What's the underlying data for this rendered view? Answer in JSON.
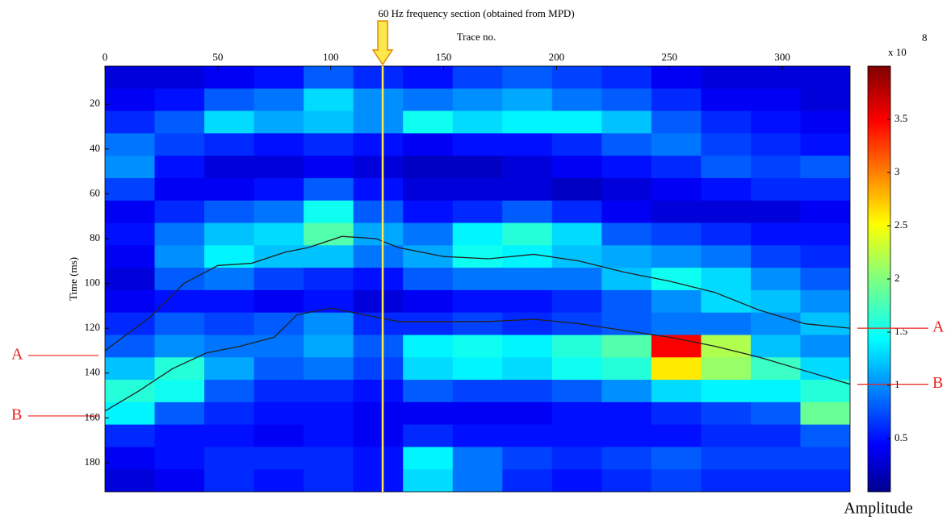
{
  "chart_data": {
    "type": "heatmap",
    "title": "60 Hz frequency section (obtained from MPD)",
    "x_label": "Trace no.",
    "y_label": "Time (ms)",
    "x": [
      11,
      33,
      55,
      77,
      99,
      121,
      143,
      165,
      187,
      209,
      231,
      253,
      275,
      297,
      319
    ],
    "y": [
      8,
      18,
      28,
      38,
      48,
      58,
      68,
      78,
      88,
      98,
      108,
      118,
      128,
      138,
      148,
      158,
      168,
      178,
      188
    ],
    "z": [
      [
        0.3,
        0.3,
        0.4,
        0.5,
        0.8,
        0.6,
        0.5,
        0.7,
        0.8,
        0.7,
        0.6,
        0.4,
        0.3,
        0.3,
        0.3
      ],
      [
        0.4,
        0.5,
        0.8,
        0.9,
        1.3,
        1.0,
        0.9,
        1.0,
        1.1,
        0.9,
        0.8,
        0.6,
        0.4,
        0.4,
        0.3
      ],
      [
        0.6,
        0.8,
        1.3,
        1.1,
        1.2,
        1.0,
        1.5,
        1.3,
        1.4,
        1.4,
        1.2,
        0.8,
        0.6,
        0.5,
        0.4
      ],
      [
        0.9,
        0.7,
        0.6,
        0.5,
        0.6,
        0.5,
        0.4,
        0.5,
        0.5,
        0.6,
        0.8,
        0.9,
        0.7,
        0.6,
        0.5
      ],
      [
        1.0,
        0.5,
        0.3,
        0.3,
        0.4,
        0.3,
        0.2,
        0.2,
        0.3,
        0.4,
        0.5,
        0.6,
        0.8,
        0.7,
        0.8
      ],
      [
        0.7,
        0.4,
        0.4,
        0.5,
        0.8,
        0.5,
        0.3,
        0.3,
        0.3,
        0.2,
        0.3,
        0.4,
        0.5,
        0.6,
        0.6
      ],
      [
        0.4,
        0.6,
        0.8,
        0.9,
        1.5,
        0.8,
        0.5,
        0.6,
        0.8,
        0.6,
        0.4,
        0.3,
        0.3,
        0.3,
        0.4
      ],
      [
        0.5,
        0.9,
        1.2,
        1.3,
        1.8,
        1.1,
        0.9,
        1.4,
        1.6,
        1.3,
        0.8,
        0.7,
        0.6,
        0.5,
        0.5
      ],
      [
        0.4,
        1.0,
        1.4,
        1.2,
        1.2,
        0.9,
        1.1,
        1.5,
        1.4,
        1.2,
        1.1,
        1.0,
        0.9,
        0.7,
        0.6
      ],
      [
        0.3,
        0.8,
        0.9,
        0.7,
        0.6,
        0.5,
        0.8,
        0.9,
        0.9,
        0.9,
        1.2,
        1.5,
        1.3,
        1.0,
        0.8
      ],
      [
        0.4,
        0.5,
        0.5,
        0.4,
        0.5,
        0.3,
        0.4,
        0.5,
        0.5,
        0.6,
        0.8,
        1.0,
        1.3,
        1.2,
        1.0
      ],
      [
        0.6,
        0.8,
        0.7,
        0.8,
        1.0,
        0.6,
        0.6,
        0.7,
        0.6,
        0.7,
        0.8,
        0.9,
        0.9,
        1.0,
        1.2
      ],
      [
        0.8,
        1.0,
        0.9,
        0.9,
        1.1,
        0.8,
        1.4,
        1.5,
        1.4,
        1.6,
        1.8,
        3.5,
        2.2,
        1.2,
        1.0
      ],
      [
        1.2,
        1.6,
        1.1,
        0.8,
        0.9,
        0.7,
        1.3,
        1.4,
        1.3,
        1.5,
        1.6,
        2.6,
        2.1,
        1.7,
        1.3
      ],
      [
        1.6,
        1.5,
        0.8,
        0.6,
        0.6,
        0.5,
        0.8,
        0.7,
        0.7,
        0.8,
        1.0,
        1.3,
        1.4,
        1.4,
        1.6
      ],
      [
        1.4,
        0.8,
        0.6,
        0.5,
        0.5,
        0.4,
        0.4,
        0.4,
        0.4,
        0.5,
        0.5,
        0.6,
        0.7,
        0.8,
        1.9
      ],
      [
        0.6,
        0.5,
        0.5,
        0.4,
        0.5,
        0.4,
        0.6,
        0.5,
        0.5,
        0.5,
        0.5,
        0.5,
        0.6,
        0.6,
        0.8
      ],
      [
        0.4,
        0.5,
        0.6,
        0.6,
        0.6,
        0.5,
        1.4,
        0.9,
        0.7,
        0.6,
        0.7,
        0.8,
        0.7,
        0.7,
        0.7
      ],
      [
        0.3,
        0.4,
        0.6,
        0.5,
        0.6,
        0.5,
        1.3,
        0.9,
        0.6,
        0.5,
        0.6,
        0.7,
        0.6,
        0.6,
        0.6
      ]
    ],
    "xlim": [
      0,
      330
    ],
    "ylim": [
      3,
      193
    ],
    "xticks": [
      0,
      50,
      100,
      150,
      200,
      250,
      300
    ],
    "yticks": [
      20,
      40,
      60,
      80,
      100,
      120,
      140,
      160,
      180
    ],
    "y_reversed": true,
    "colormap": "jet",
    "colorbar": {
      "label": "Amplitude",
      "multiplier": "x 10",
      "exponent": "8",
      "clim": [
        0,
        4
      ],
      "ticks": [
        0.5,
        1,
        1.5,
        2,
        2.5,
        3,
        3.5
      ]
    },
    "vline": {
      "x": 123,
      "color": "#ffe84d"
    },
    "series": [
      {
        "name": "A",
        "color": "#222222",
        "x": [
          0,
          20,
          35,
          50,
          65,
          80,
          90,
          105,
          120,
          130,
          150,
          170,
          190,
          210,
          230,
          250,
          270,
          290,
          310,
          330
        ],
        "values": [
          130,
          115,
          100,
          92,
          91,
          86,
          84,
          79,
          80,
          84,
          88,
          89,
          87,
          90,
          95,
          99,
          104,
          112,
          118,
          120
        ]
      },
      {
        "name": "B",
        "color": "#222222",
        "x": [
          0,
          15,
          30,
          45,
          60,
          75,
          85,
          100,
          115,
          130,
          150,
          170,
          190,
          210,
          230,
          250,
          270,
          290,
          310,
          330
        ],
        "values": [
          157,
          148,
          138,
          131,
          128,
          124,
          114,
          111,
          114,
          117,
          117,
          117,
          116,
          118,
          121,
          124,
          128,
          133,
          139,
          145
        ]
      }
    ]
  }
}
